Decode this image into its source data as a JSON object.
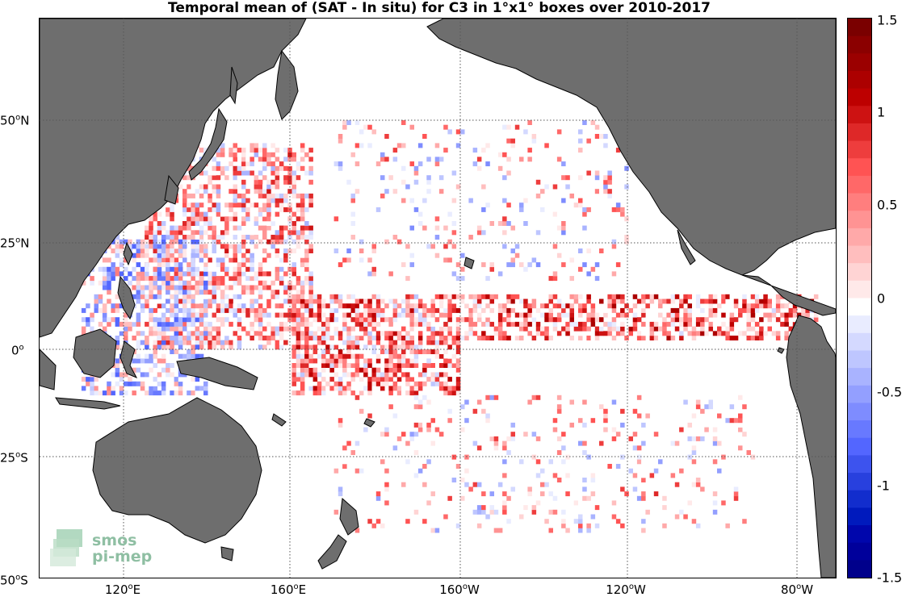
{
  "title": "Temporal mean of (SAT - In situ) for C3 in 1°x1° boxes over 2010-2017",
  "x_ticks": [
    {
      "deg": "120",
      "hem": "E"
    },
    {
      "deg": "160",
      "hem": "E"
    },
    {
      "deg": "160",
      "hem": "W"
    },
    {
      "deg": "120",
      "hem": "W"
    },
    {
      "deg": "80",
      "hem": "W"
    }
  ],
  "y_ticks": [
    {
      "deg": "50",
      "hem": "N"
    },
    {
      "deg": "25",
      "hem": "N"
    },
    {
      "deg": "0",
      "hem": ""
    },
    {
      "deg": "25",
      "hem": "S"
    },
    {
      "deg": "50",
      "hem": "S"
    }
  ],
  "colorbar": {
    "min": -1.5,
    "max": 1.5,
    "levels": 32,
    "tick_labels": [
      "1.5",
      "1",
      "0.5",
      "0",
      "-0.5",
      "-1",
      "-1.5"
    ]
  },
  "colors": {
    "land": "#6e6e6e",
    "coast": "#000000",
    "positive_max": "#7a0000",
    "negative_max": "#000a7a",
    "neutral": "#ffffff"
  },
  "logo": {
    "line1": "smos",
    "line2": "pi-mep"
  },
  "chart_data": {
    "type": "heatmap",
    "title": "Temporal mean of (SAT - In situ) for C3 in 1°x1° boxes over 2010-2017",
    "xlabel": "",
    "ylabel": "",
    "xlim": [
      100,
      290
    ],
    "ylim": [
      -50,
      68
    ],
    "cell_size_deg": 1,
    "value_range": [
      -1.5,
      1.5
    ],
    "grid": true,
    "notes": "Scattered 1°x1° boxes; dense positive band along 0–10°N (≈140°E–80°W), negative values near Indonesia and western Pacific.",
    "regions": [
      {
        "lon_range": [
          125,
          165
        ],
        "lat_range": [
          0,
          45
        ],
        "mean": 0.3,
        "density": 0.55
      },
      {
        "lon_range": [
          160,
          200
        ],
        "lat_range": [
          -10,
          12
        ],
        "mean": 0.45,
        "density": 0.65
      },
      {
        "lon_range": [
          200,
          285
        ],
        "lat_range": [
          2,
          12
        ],
        "mean": 0.55,
        "density": 0.55
      },
      {
        "lon_range": [
          110,
          140
        ],
        "lat_range": [
          -10,
          25
        ],
        "mean": -0.1,
        "density": 0.5
      },
      {
        "lon_range": [
          170,
          270
        ],
        "lat_range": [
          -40,
          -10
        ],
        "mean": 0.2,
        "density": 0.12
      },
      {
        "lon_range": [
          170,
          240
        ],
        "lat_range": [
          15,
          50
        ],
        "mean": 0.15,
        "density": 0.12
      }
    ]
  }
}
